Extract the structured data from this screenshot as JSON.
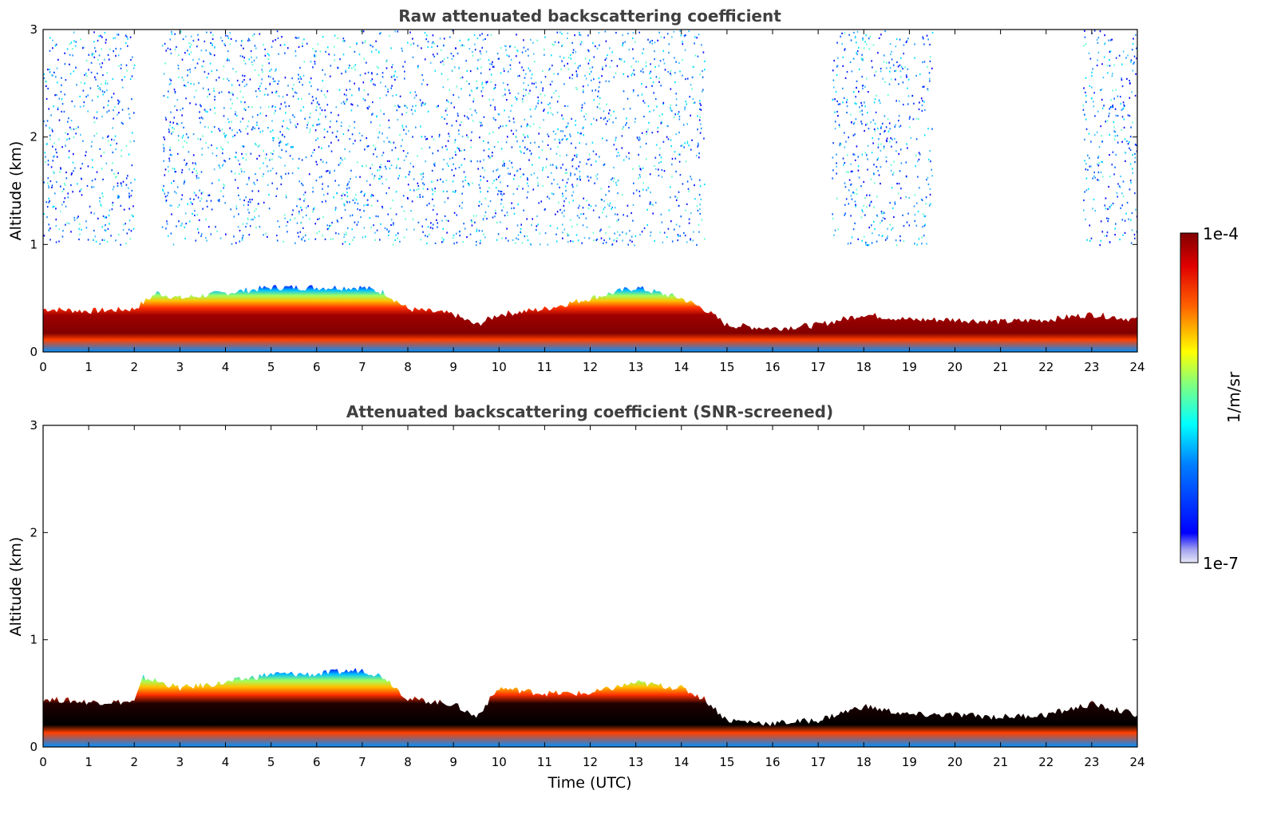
{
  "chart_data": [
    {
      "type": "heatmap",
      "title": "Raw attenuated backscattering coefficient",
      "xlabel": "",
      "ylabel": "Altitude (km)",
      "xlim": [
        0,
        24
      ],
      "ylim": [
        0,
        3
      ],
      "xticks": [
        0,
        1,
        2,
        3,
        4,
        5,
        6,
        7,
        8,
        9,
        10,
        11,
        12,
        13,
        14,
        15,
        16,
        17,
        18,
        19,
        20,
        21,
        22,
        23,
        24
      ],
      "yticks": [
        0,
        1,
        2,
        3
      ],
      "boundary_layer_top_km": {
        "time_h": [
          0,
          1,
          2,
          2.5,
          3,
          4,
          5,
          6,
          7,
          7.5,
          8,
          9,
          9.5,
          10,
          11,
          12,
          13,
          14,
          14.5,
          15,
          16,
          17,
          18,
          19,
          20,
          21,
          22,
          23,
          24
        ],
        "altitude": [
          0.4,
          0.38,
          0.4,
          0.55,
          0.5,
          0.55,
          0.6,
          0.6,
          0.6,
          0.55,
          0.4,
          0.35,
          0.25,
          0.35,
          0.4,
          0.5,
          0.6,
          0.5,
          0.4,
          0.25,
          0.22,
          0.25,
          0.35,
          0.3,
          0.3,
          0.28,
          0.3,
          0.35,
          0.3
        ]
      },
      "noise_regions_time_h": [
        [
          0,
          2
        ],
        [
          2.6,
          9.5
        ],
        [
          9.5,
          14.5
        ],
        [
          17.3,
          19.5
        ],
        [
          22.8,
          24
        ]
      ]
    },
    {
      "type": "heatmap",
      "title": "Attenuated backscattering coefficient (SNR-screened)",
      "xlabel": "Time (UTC)",
      "ylabel": "Altitude (km)",
      "xlim": [
        0,
        24
      ],
      "ylim": [
        0,
        3
      ],
      "xticks": [
        0,
        1,
        2,
        3,
        4,
        5,
        6,
        7,
        8,
        9,
        10,
        11,
        12,
        13,
        14,
        15,
        16,
        17,
        18,
        19,
        20,
        21,
        22,
        23,
        24
      ],
      "yticks": [
        0,
        1,
        2,
        3
      ],
      "boundary_layer_top_km": {
        "time_h": [
          0,
          1,
          2,
          2.2,
          3,
          4,
          5,
          6,
          7,
          7.5,
          8,
          9,
          9.5,
          10,
          11,
          12,
          13,
          14,
          14.5,
          15,
          16,
          17,
          18,
          19,
          20,
          21,
          22,
          23,
          24
        ],
        "altitude": [
          0.45,
          0.42,
          0.42,
          0.65,
          0.55,
          0.6,
          0.68,
          0.68,
          0.72,
          0.65,
          0.45,
          0.4,
          0.28,
          0.55,
          0.5,
          0.5,
          0.6,
          0.55,
          0.45,
          0.25,
          0.22,
          0.25,
          0.38,
          0.3,
          0.3,
          0.28,
          0.3,
          0.4,
          0.3
        ]
      }
    }
  ],
  "colorbar": {
    "label": "1/m/sr",
    "max_label": "1e-4",
    "min_label": "1e-7",
    "scale": "log",
    "colormap": "jet"
  }
}
